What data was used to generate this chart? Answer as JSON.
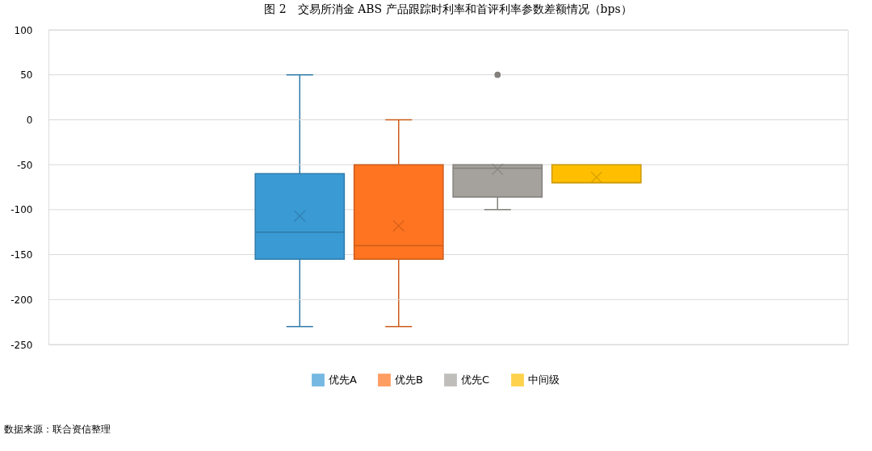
{
  "chart_data": {
    "type": "box",
    "title": "图 2　交易所消金 ABS 产品跟踪时利率和首评利率参数差额情况（bps）",
    "categories": [
      null
    ],
    "series": [
      {
        "name": "优先A",
        "color": "#3a9ad4",
        "boxes": [
          {
            "low": -230,
            "q1": -155,
            "median": -125,
            "q3": -60,
            "high": 50,
            "mean": -107
          }
        ]
      },
      {
        "name": "优先B",
        "color": "#ff7421",
        "boxes": [
          {
            "low": -230,
            "q1": -155,
            "median": -140,
            "q3": -50,
            "high": 0,
            "mean": -118
          }
        ]
      },
      {
        "name": "优先C",
        "color": "#a5a29d",
        "boxes": [
          {
            "low": -100,
            "q1": -86,
            "median": -54,
            "q3": -50,
            "high": -50,
            "mean": -55,
            "outliers": [
              50
            ]
          }
        ]
      },
      {
        "name": "中间级",
        "color": "#ffbf00",
        "boxes": [
          {
            "low": -70,
            "q1": -70,
            "median": -70,
            "q3": -50,
            "high": -50,
            "mean": -64
          }
        ]
      }
    ],
    "ylim": [
      -250,
      100
    ],
    "yticks": [
      -250,
      -200,
      -150,
      -100,
      -50,
      0,
      50,
      100
    ],
    "grid": "y",
    "legend": "bottom",
    "annotations": [
      "数据来源：联合资信整理"
    ]
  }
}
